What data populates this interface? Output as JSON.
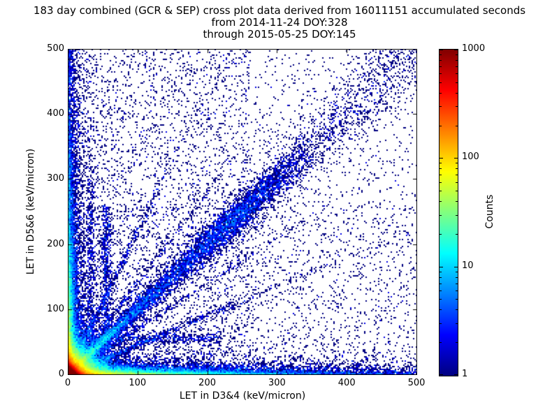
{
  "figure": {
    "title_lines": [
      "183 day combined (GCR & SEP) cross plot data derived from 16011151 accumulated seconds",
      "from 2014-11-24 DOY:328",
      "through 2015-05-25 DOY:145"
    ],
    "background_color": "#ffffff",
    "text_color": "#000000"
  },
  "chart_data": {
    "type": "heatmap",
    "title": "183 day combined (GCR & SEP) cross plot data derived from 16011151 accumulated seconds",
    "subtitle_lines": [
      "from 2014-11-24 DOY:328",
      "through 2015-05-25 DOY:145"
    ],
    "xlabel": "LET in D3&4 (keV/micron)",
    "ylabel": "LET in D5&6 (keV/micron)",
    "xlim": [
      0,
      500
    ],
    "ylim": [
      0,
      500
    ],
    "xticks": [
      0,
      100,
      200,
      300,
      400,
      500
    ],
    "yticks": [
      0,
      100,
      200,
      300,
      400,
      500
    ],
    "grid": false,
    "colorbar": {
      "label": "Counts",
      "scale": "log",
      "range": [
        1,
        1000
      ],
      "ticks": [
        1,
        10,
        100,
        1000
      ],
      "tick_labels": [
        "1",
        "10",
        "100",
        "1000"
      ],
      "colormap": "jet",
      "colormap_stops": [
        "#000080",
        "#0000ff",
        "#0080ff",
        "#00ffff",
        "#80ff80",
        "#ffff00",
        "#ff8000",
        "#ff0000",
        "#800000"
      ]
    },
    "render_seed": 328145,
    "density_model": {
      "description": "2D log-count histogram of coincident LET events: intense hot spot at the origin, bright bands hugging both axes, a y=x correlation ridge with a denser cluster near 245 keV/micron, faint rays fanning out from the origin, and sparse single-count background points",
      "components": [
        {
          "kind": "uniform",
          "n": 2600,
          "xmin": 0,
          "xmax": 500,
          "ymin": 0,
          "ymax": 500
        },
        {
          "kind": "uniform",
          "n": 2200,
          "xmin": 0,
          "xmax": 260,
          "ymin": 0,
          "ymax": 500
        },
        {
          "kind": "uniform",
          "n": 1200,
          "xmin": 0,
          "xmax": 500,
          "ymin": 0,
          "ymax": 260
        },
        {
          "kind": "exp",
          "n": 80000,
          "sx": 4,
          "sy": 4
        },
        {
          "kind": "exp",
          "n": 30000,
          "sx": 14,
          "sy": 14
        },
        {
          "kind": "exp",
          "n": 10000,
          "sx": 100,
          "sy": 4
        },
        {
          "kind": "exp",
          "n": 3000,
          "sx": 400,
          "sy": 6
        },
        {
          "kind": "exp",
          "n": 2500,
          "sx": 300,
          "sy": 15
        },
        {
          "kind": "exp",
          "n": 10000,
          "sx": 4,
          "sy": 100
        },
        {
          "kind": "exp",
          "n": 3000,
          "sx": 6,
          "sy": 400
        },
        {
          "kind": "exp",
          "n": 2500,
          "sx": 15,
          "sy": 300
        },
        {
          "kind": "diag",
          "n": 5000,
          "decay": 150,
          "sigma0": 2,
          "sigma_slope": 0.04
        },
        {
          "kind": "diag_uniform",
          "n": 2500,
          "max": 500,
          "sigma0": 4,
          "sigma_slope": 0.05
        },
        {
          "kind": "diag_cluster",
          "n": 2200,
          "center": 245,
          "len_sigma": 45,
          "perp_sigma": 10
        },
        {
          "kind": "ray",
          "n": 900,
          "slope": 0.45,
          "decay": 120,
          "sigma": 3
        },
        {
          "kind": "ray",
          "n": 900,
          "slope": 2.2,
          "decay": 120,
          "sigma": 3
        },
        {
          "kind": "ray",
          "n": 500,
          "slope": 0.7,
          "decay": 130,
          "sigma": 3
        },
        {
          "kind": "ray",
          "n": 500,
          "slope": 1.4,
          "decay": 130,
          "sigma": 3
        },
        {
          "kind": "vline",
          "n": 700,
          "x": 55,
          "sigma": 4,
          "ymin": 40,
          "ymax": 260
        },
        {
          "kind": "vline",
          "n": 400,
          "x": 33,
          "sigma": 3,
          "ymin": 40,
          "ymax": 300
        },
        {
          "kind": "hline",
          "n": 450,
          "y": 55,
          "sigma": 4,
          "xmin": 40,
          "xmax": 220
        }
      ]
    }
  }
}
